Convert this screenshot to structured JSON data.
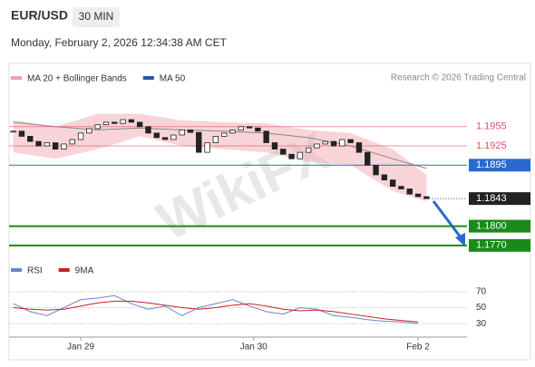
{
  "chart_data": {
    "type": "candlestick",
    "symbol": "EUR/USD",
    "timeframe": "30 MIN",
    "date": "Monday, February 2, 2026 12:34:38 AM CET",
    "credit": "Research © 2026 Trading Central",
    "watermark": "WikiFX",
    "xlim": [
      -0.5,
      53.8
    ],
    "xticks": [
      {
        "value": 8,
        "label": "Jan 29"
      },
      {
        "value": 28.5,
        "label": "Jan 30"
      },
      {
        "value": 48,
        "label": "Feb 2"
      }
    ],
    "ylim": [
      1.175,
      1.199
    ],
    "close": [
      1.1948,
      1.194,
      1.1932,
      1.1925,
      1.193,
      1.192,
      1.1928,
      1.1935,
      1.1945,
      1.1952,
      1.1958,
      1.1962,
      1.196,
      1.1966,
      1.1962,
      1.1955,
      1.1945,
      1.1938,
      1.1935,
      1.1942,
      1.195,
      1.1946,
      1.1915,
      1.193,
      1.194,
      1.1945,
      1.195,
      1.1955,
      1.1953,
      1.1948,
      1.193,
      1.192,
      1.1912,
      1.1905,
      1.1915,
      1.1922,
      1.1928,
      1.1932,
      1.1925,
      1.1935,
      1.193,
      1.1915,
      1.1895,
      1.188,
      1.1872,
      1.1862,
      1.1858,
      1.185,
      1.1846,
      1.1843
    ],
    "series": [
      {
        "name": "MA 20 + Bollinger Bands",
        "color": "#f0a0a8",
        "x": [
          0,
          5,
          10,
          15,
          20,
          25,
          30,
          35,
          40,
          45,
          49
        ],
        "upper": [
          1.1965,
          1.1955,
          1.1975,
          1.1975,
          1.1965,
          1.1962,
          1.196,
          1.195,
          1.1945,
          1.192,
          1.188
        ],
        "lower": [
          1.1915,
          1.1905,
          1.192,
          1.194,
          1.1925,
          1.192,
          1.1915,
          1.19,
          1.1895,
          1.1855,
          1.1838
        ]
      },
      {
        "name": "MA 50",
        "color": "#2a5a9a",
        "line_color": "#888888",
        "x": [
          0,
          5,
          10,
          15,
          20,
          25,
          30,
          35,
          40,
          45,
          49
        ],
        "values": [
          1.1962,
          1.1955,
          1.195,
          1.1953,
          1.195,
          1.1948,
          1.1945,
          1.1938,
          1.1925,
          1.1905,
          1.189
        ]
      }
    ],
    "levels": [
      {
        "price": 1.1955,
        "color": "#e05060",
        "kind": "text"
      },
      {
        "price": 1.1925,
        "color": "#e05060",
        "kind": "text"
      },
      {
        "price": 1.1895,
        "color": "#2a6ad0",
        "kind": "box"
      },
      {
        "price": 1.1843,
        "color": "#222222",
        "kind": "current"
      },
      {
        "price": {
          "value": 1.18,
          "label": "1.1800"
        },
        "color": "#1a8a1a",
        "kind": "box"
      },
      {
        "price": {
          "value": 1.177,
          "label": "1.1770"
        },
        "color": "#1a8a1a",
        "kind": "box"
      }
    ],
    "rsi": {
      "ylim": [
        20,
        80
      ],
      "yticks": [
        70,
        50,
        30
      ],
      "x": [
        0,
        2,
        4,
        6,
        8,
        10,
        12,
        14,
        16,
        18,
        20,
        22,
        24,
        26,
        28,
        30,
        32,
        34,
        36,
        38,
        40,
        42,
        44,
        46,
        48
      ],
      "series": [
        {
          "name": "RSI",
          "color": "#6a86c8",
          "values": [
            55,
            45,
            40,
            50,
            60,
            62,
            65,
            55,
            48,
            52,
            40,
            50,
            55,
            60,
            52,
            45,
            42,
            50,
            48,
            40,
            38,
            35,
            33,
            32,
            30
          ]
        },
        {
          "name": "9MA",
          "color": "#c8202a",
          "values": [
            50,
            48,
            47,
            48,
            52,
            56,
            58,
            58,
            56,
            53,
            50,
            48,
            50,
            53,
            55,
            52,
            48,
            46,
            47,
            45,
            42,
            39,
            36,
            34,
            32
          ]
        }
      ]
    }
  }
}
